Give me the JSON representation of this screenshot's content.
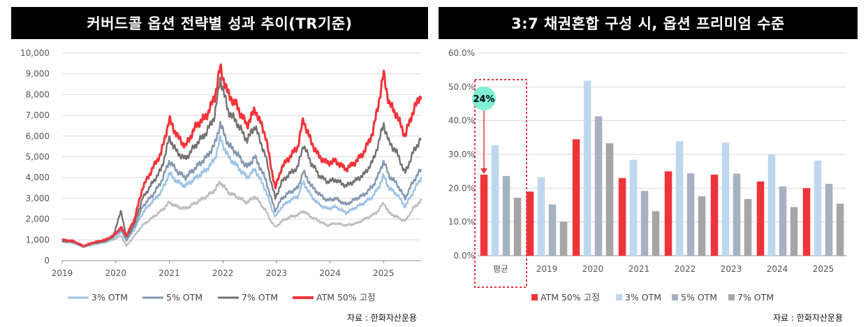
{
  "left_title": "커버드콜 옵션 전략별 성과 추이(TR기준)",
  "right_title": "3:7 채권혼합 구성 시, 옵션 프리미엄 수준",
  "left_source": "자료 : 한화자산운용",
  "right_source": "자료 : 한화자산운용",
  "colors": {
    "otm3": "#9dc3e6",
    "otm5": "#8497b0",
    "otm7": "#767171",
    "atm50": "#f4333b",
    "line_3otm": "#bdbdbd",
    "bar_atm": "#f0333b",
    "bar_3otm": "#bdd7ee",
    "bar_5otm": "#a6b1c4",
    "bar_7otm": "#a5a5a5",
    "annotation": "#7ff2d5"
  },
  "chart_data": [
    {
      "type": "line",
      "title": "커버드콜 옵션 전략별 성과 추이(TR기준)",
      "ylim": [
        0,
        10000
      ],
      "yticks": [
        "0",
        "1,000",
        "2,000",
        "3,000",
        "4,000",
        "5,000",
        "6,000",
        "7,000",
        "8,000",
        "9,000",
        "10,000"
      ],
      "x_ticks": [
        "2019",
        "2020",
        "2021",
        "2022",
        "2023",
        "2024",
        "2025"
      ],
      "x_range": [
        2019.0,
        2025.7
      ],
      "legend": [
        "3% OTM",
        "5% OTM",
        "7% OTM",
        "ATM 50% 고정"
      ],
      "series": [
        {
          "name": "ATM 50% 고정",
          "color_key": "atm50",
          "points": [
            [
              2019.0,
              1000
            ],
            [
              2019.2,
              950
            ],
            [
              2019.4,
              700
            ],
            [
              2019.55,
              850
            ],
            [
              2019.8,
              1000
            ],
            [
              2019.95,
              1200
            ],
            [
              2020.1,
              1600
            ],
            [
              2020.2,
              1200
            ],
            [
              2020.35,
              2000
            ],
            [
              2020.5,
              3500
            ],
            [
              2020.7,
              4500
            ],
            [
              2020.85,
              5200
            ],
            [
              2021.0,
              6800
            ],
            [
              2021.15,
              6000
            ],
            [
              2021.3,
              5500
            ],
            [
              2021.5,
              6500
            ],
            [
              2021.7,
              7000
            ],
            [
              2021.85,
              7900
            ],
            [
              2021.95,
              9300
            ],
            [
              2022.1,
              8000
            ],
            [
              2022.25,
              7500
            ],
            [
              2022.45,
              6500
            ],
            [
              2022.6,
              7300
            ],
            [
              2022.8,
              6000
            ],
            [
              2022.9,
              4500
            ],
            [
              2022.98,
              3500
            ],
            [
              2023.1,
              4500
            ],
            [
              2023.25,
              5000
            ],
            [
              2023.4,
              5500
            ],
            [
              2023.5,
              6800
            ],
            [
              2023.65,
              5700
            ],
            [
              2023.8,
              5000
            ],
            [
              2023.95,
              4700
            ],
            [
              2024.1,
              4800
            ],
            [
              2024.3,
              4400
            ],
            [
              2024.5,
              4800
            ],
            [
              2024.65,
              5300
            ],
            [
              2024.8,
              6200
            ],
            [
              2024.9,
              7500
            ],
            [
              2025.0,
              9000
            ],
            [
              2025.1,
              7600
            ],
            [
              2025.25,
              7000
            ],
            [
              2025.4,
              6000
            ],
            [
              2025.55,
              7200
            ],
            [
              2025.7,
              8000
            ]
          ]
        },
        {
          "name": "7% OTM",
          "color_key": "otm7",
          "points": [
            [
              2019.0,
              950
            ],
            [
              2019.2,
              920
            ],
            [
              2019.4,
              680
            ],
            [
              2019.55,
              820
            ],
            [
              2019.8,
              950
            ],
            [
              2019.95,
              1150
            ],
            [
              2020.1,
              2400
            ],
            [
              2020.2,
              1100
            ],
            [
              2020.35,
              1800
            ],
            [
              2020.5,
              3000
            ],
            [
              2020.7,
              3800
            ],
            [
              2020.85,
              4400
            ],
            [
              2021.0,
              5900
            ],
            [
              2021.15,
              5200
            ],
            [
              2021.3,
              4900
            ],
            [
              2021.5,
              5600
            ],
            [
              2021.7,
              6200
            ],
            [
              2021.85,
              7000
            ],
            [
              2021.95,
              8800
            ],
            [
              2022.1,
              7200
            ],
            [
              2022.25,
              6700
            ],
            [
              2022.45,
              5800
            ],
            [
              2022.6,
              6500
            ],
            [
              2022.8,
              5000
            ],
            [
              2022.9,
              3800
            ],
            [
              2022.98,
              3000
            ],
            [
              2023.1,
              3800
            ],
            [
              2023.25,
              4200
            ],
            [
              2023.4,
              4500
            ],
            [
              2023.5,
              5600
            ],
            [
              2023.65,
              4700
            ],
            [
              2023.8,
              4100
            ],
            [
              2023.95,
              3800
            ],
            [
              2024.1,
              3900
            ],
            [
              2024.3,
              3600
            ],
            [
              2024.5,
              3900
            ],
            [
              2024.65,
              4200
            ],
            [
              2024.8,
              4800
            ],
            [
              2024.9,
              5600
            ],
            [
              2025.0,
              6600
            ],
            [
              2025.1,
              5700
            ],
            [
              2025.25,
              5200
            ],
            [
              2025.4,
              4200
            ],
            [
              2025.55,
              5200
            ],
            [
              2025.7,
              5900
            ]
          ]
        },
        {
          "name": "5% OTM",
          "color_key": "otm5",
          "points": [
            [
              2019.0,
              950
            ],
            [
              2019.2,
              900
            ],
            [
              2019.4,
              670
            ],
            [
              2019.55,
              800
            ],
            [
              2019.8,
              930
            ],
            [
              2019.95,
              1120
            ],
            [
              2020.1,
              1500
            ],
            [
              2020.2,
              1000
            ],
            [
              2020.35,
              1650
            ],
            [
              2020.5,
              2600
            ],
            [
              2020.7,
              3200
            ],
            [
              2020.85,
              3800
            ],
            [
              2021.0,
              4800
            ],
            [
              2021.15,
              4300
            ],
            [
              2021.3,
              4000
            ],
            [
              2021.5,
              4500
            ],
            [
              2021.7,
              5000
            ],
            [
              2021.85,
              5600
            ],
            [
              2021.95,
              6600
            ],
            [
              2022.1,
              5600
            ],
            [
              2022.25,
              5200
            ],
            [
              2022.45,
              4500
            ],
            [
              2022.6,
              5000
            ],
            [
              2022.8,
              3900
            ],
            [
              2022.9,
              3000
            ],
            [
              2022.98,
              2400
            ],
            [
              2023.1,
              3000
            ],
            [
              2023.25,
              3300
            ],
            [
              2023.4,
              3500
            ],
            [
              2023.5,
              4300
            ],
            [
              2023.65,
              3600
            ],
            [
              2023.8,
              3200
            ],
            [
              2023.95,
              2900
            ],
            [
              2024.1,
              3000
            ],
            [
              2024.3,
              2700
            ],
            [
              2024.5,
              3000
            ],
            [
              2024.65,
              3200
            ],
            [
              2024.8,
              3600
            ],
            [
              2024.9,
              4100
            ],
            [
              2025.0,
              4800
            ],
            [
              2025.1,
              4100
            ],
            [
              2025.25,
              3700
            ],
            [
              2025.4,
              3000
            ],
            [
              2025.55,
              3800
            ],
            [
              2025.7,
              4400
            ]
          ]
        },
        {
          "name": "3% OTM",
          "color_key": "otm3",
          "points": [
            [
              2019.0,
              930
            ],
            [
              2019.2,
              880
            ],
            [
              2019.4,
              660
            ],
            [
              2019.55,
              780
            ],
            [
              2019.8,
              910
            ],
            [
              2019.95,
              1080
            ],
            [
              2020.1,
              1400
            ],
            [
              2020.2,
              950
            ],
            [
              2020.35,
              1500
            ],
            [
              2020.5,
              2300
            ],
            [
              2020.7,
              2900
            ],
            [
              2020.85,
              3300
            ],
            [
              2021.0,
              4200
            ],
            [
              2021.15,
              3800
            ],
            [
              2021.3,
              3600
            ],
            [
              2021.5,
              4000
            ],
            [
              2021.7,
              4400
            ],
            [
              2021.85,
              4900
            ],
            [
              2021.95,
              5900
            ],
            [
              2022.1,
              5000
            ],
            [
              2022.25,
              4600
            ],
            [
              2022.45,
              4000
            ],
            [
              2022.6,
              4400
            ],
            [
              2022.8,
              3400
            ],
            [
              2022.9,
              2600
            ],
            [
              2022.98,
              2100
            ],
            [
              2023.1,
              2600
            ],
            [
              2023.25,
              2900
            ],
            [
              2023.4,
              3100
            ],
            [
              2023.5,
              3800
            ],
            [
              2023.65,
              3100
            ],
            [
              2023.8,
              2700
            ],
            [
              2023.95,
              2500
            ],
            [
              2024.1,
              2600
            ],
            [
              2024.3,
              2300
            ],
            [
              2024.5,
              2600
            ],
            [
              2024.65,
              2800
            ],
            [
              2024.8,
              3100
            ],
            [
              2024.9,
              3500
            ],
            [
              2025.0,
              4100
            ],
            [
              2025.1,
              3500
            ],
            [
              2025.25,
              3200
            ],
            [
              2025.4,
              2600
            ],
            [
              2025.55,
              3300
            ],
            [
              2025.7,
              4000
            ]
          ]
        },
        {
          "name": "(unlabeled light grey)",
          "color_key": "line_3otm",
          "points": [
            [
              2019.0,
              900
            ],
            [
              2019.2,
              860
            ],
            [
              2019.4,
              650
            ],
            [
              2019.55,
              760
            ],
            [
              2019.8,
              880
            ],
            [
              2019.95,
              1000
            ],
            [
              2020.1,
              1200
            ],
            [
              2020.2,
              700
            ],
            [
              2020.35,
              1200
            ],
            [
              2020.5,
              1700
            ],
            [
              2020.7,
              2100
            ],
            [
              2020.85,
              2400
            ],
            [
              2021.0,
              2800
            ],
            [
              2021.15,
              2600
            ],
            [
              2021.3,
              2500
            ],
            [
              2021.5,
              2800
            ],
            [
              2021.7,
              3100
            ],
            [
              2021.85,
              3400
            ],
            [
              2021.95,
              3800
            ],
            [
              2022.1,
              3300
            ],
            [
              2022.25,
              3100
            ],
            [
              2022.45,
              2800
            ],
            [
              2022.6,
              3100
            ],
            [
              2022.8,
              2400
            ],
            [
              2022.9,
              1900
            ],
            [
              2022.98,
              1600
            ],
            [
              2023.1,
              1900
            ],
            [
              2023.25,
              2100
            ],
            [
              2023.4,
              2200
            ],
            [
              2023.5,
              2400
            ],
            [
              2023.65,
              2100
            ],
            [
              2023.8,
              1900
            ],
            [
              2023.95,
              1700
            ],
            [
              2024.1,
              1800
            ],
            [
              2024.3,
              1700
            ],
            [
              2024.5,
              1800
            ],
            [
              2024.65,
              2000
            ],
            [
              2024.8,
              2200
            ],
            [
              2024.9,
              2400
            ],
            [
              2025.0,
              2800
            ],
            [
              2025.1,
              2300
            ],
            [
              2025.25,
              2100
            ],
            [
              2025.4,
              1900
            ],
            [
              2025.55,
              2500
            ],
            [
              2025.7,
              2900
            ]
          ]
        }
      ]
    },
    {
      "type": "bar",
      "title": "3:7 채권혼합 구성 시, 옵션 프리미엄 수준",
      "ylim": [
        0,
        60
      ],
      "yticks": [
        "0.0%",
        "10.0%",
        "20.0%",
        "30.0%",
        "40.0%",
        "50.0%",
        "60.0%"
      ],
      "categories": [
        "평균",
        "2019",
        "2020",
        "2021",
        "2022",
        "2023",
        "2024",
        "2025"
      ],
      "legend": [
        "ATM 50% 고정",
        "3% OTM",
        "5% OTM",
        "7% OTM"
      ],
      "series": [
        {
          "name": "ATM 50% 고정",
          "color_key": "bar_atm",
          "values": [
            24.0,
            19.0,
            34.5,
            23.0,
            25.0,
            24.0,
            22.0,
            20.0
          ]
        },
        {
          "name": "3% OTM",
          "color_key": "bar_3otm",
          "values": [
            32.7,
            23.3,
            51.8,
            28.4,
            33.9,
            33.5,
            29.9,
            28.2
          ]
        },
        {
          "name": "5% OTM",
          "color_key": "bar_5otm",
          "values": [
            23.6,
            15.2,
            41.3,
            19.2,
            24.4,
            24.3,
            20.5,
            21.3
          ]
        },
        {
          "name": "7% OTM",
          "color_key": "bar_7otm",
          "values": [
            17.2,
            10.1,
            33.3,
            13.2,
            17.6,
            16.8,
            14.4,
            15.4
          ]
        }
      ],
      "annotation": "24%"
    }
  ]
}
